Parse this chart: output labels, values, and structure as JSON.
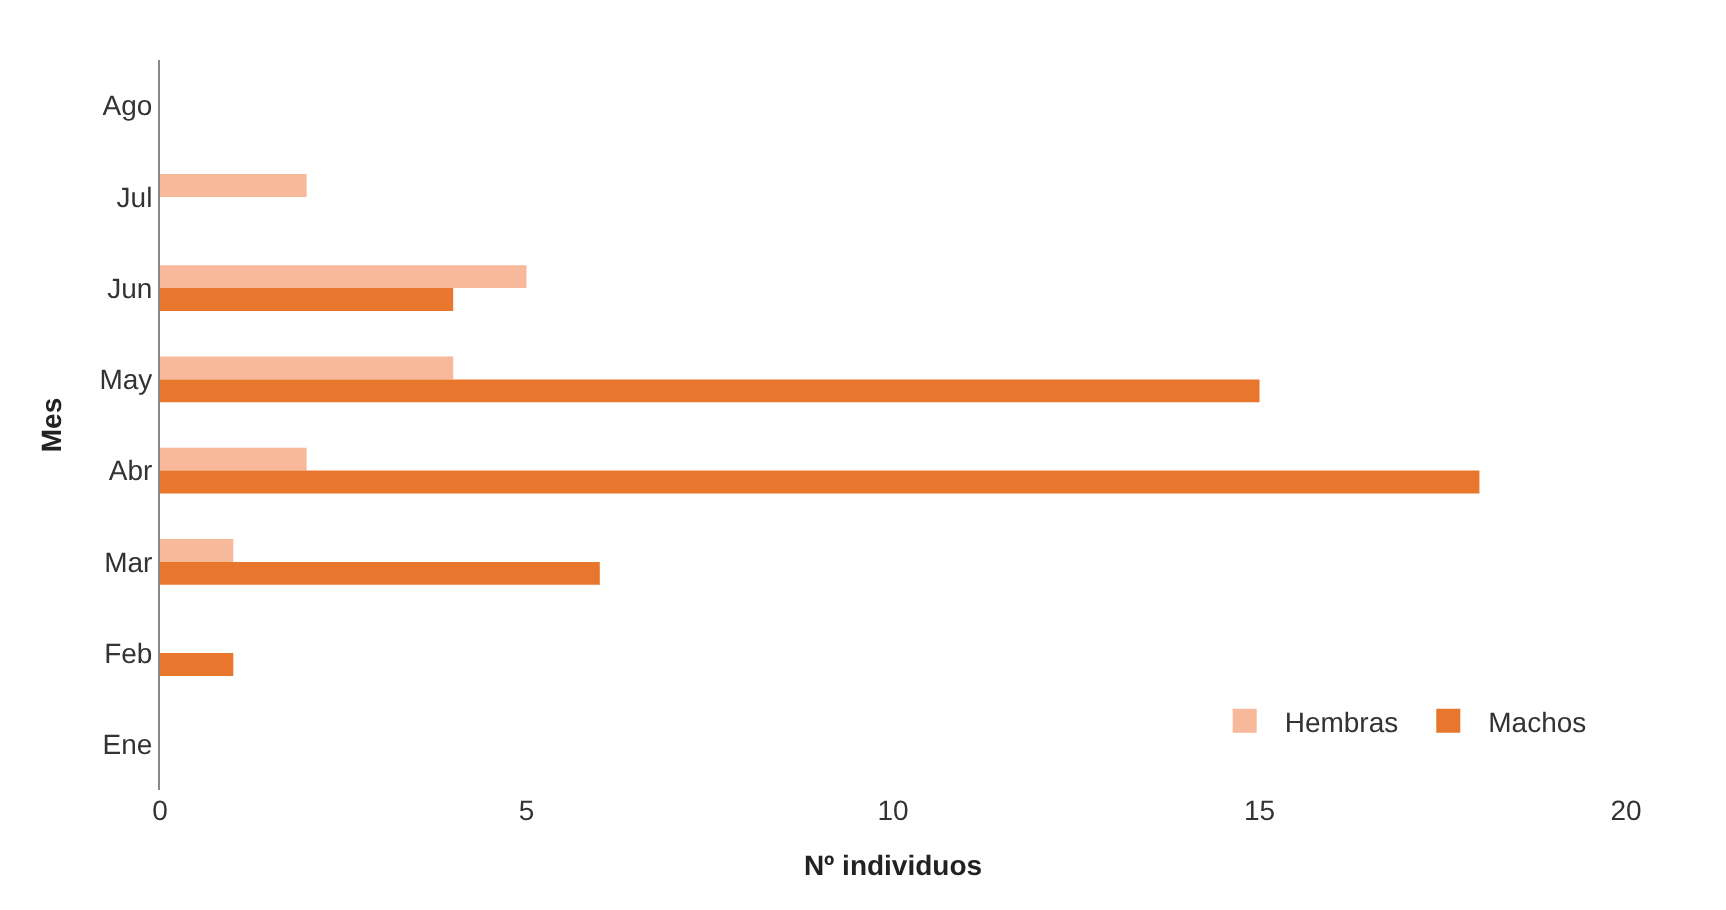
{
  "chart_data": {
    "type": "bar",
    "orientation": "horizontal",
    "xlabel": "Nº individuos",
    "ylabel": "Mes",
    "categories": [
      "Ago",
      "Jul",
      "Jun",
      "May",
      "Abr",
      "Mar",
      "Feb",
      "Ene"
    ],
    "series": [
      {
        "name": "Hembras",
        "color": "#f7b99a",
        "values": [
          0,
          2,
          5,
          4,
          2,
          1,
          0,
          0
        ]
      },
      {
        "name": "Machos",
        "color": "#e8762d",
        "values": [
          0,
          0,
          4,
          15,
          18,
          6,
          1,
          0
        ]
      }
    ],
    "xlim": [
      0,
      20
    ],
    "xticks": [
      0,
      5,
      10,
      15,
      20
    ],
    "legend": "bottom right"
  }
}
